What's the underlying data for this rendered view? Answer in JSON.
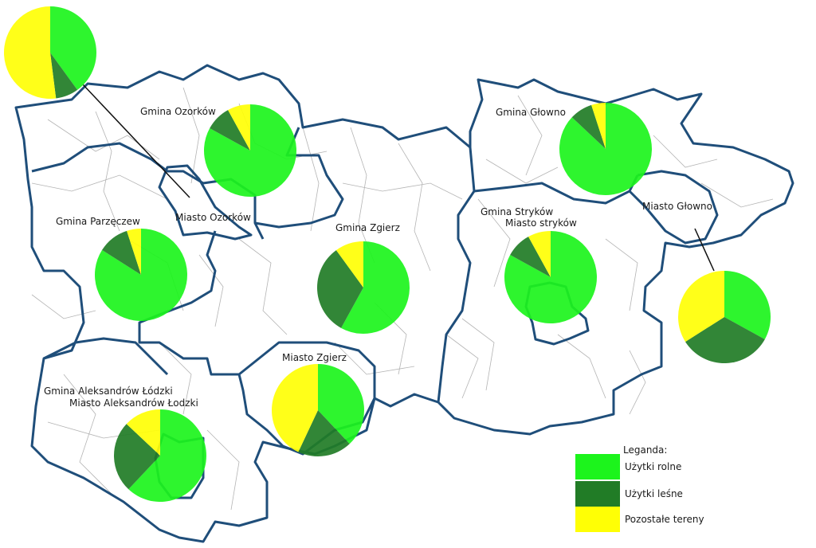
{
  "colors": {
    "agricultural": "#1cf41c",
    "forest": "#217c26",
    "other": "#ffff05",
    "boundary": "#1f4e7a",
    "parcel": "#b4b4b4"
  },
  "labels": {
    "gmina_ozorkow": "Gmina Ozorków",
    "gmina_glowno": "Gmina Głowno",
    "miasto_ozorkow": "Miasto Ozorków",
    "gmina_parzeczew": "Gmina Parzęczew",
    "gmina_zgierz": "Gmina Zgierz",
    "gmina_strykow": "Gmina Stryków",
    "miasto_strykow": "Miasto stryków",
    "miasto_glowno": "Miasto Głowno",
    "miasto_zgierz": "Miasto Zgierz",
    "gmina_aleksandrow": "Gmina Aleksandrów Łódzki",
    "miasto_aleksandrow": "Miasto Aleksandrów Łodzki"
  },
  "legend": {
    "title": "Leganda:",
    "items": [
      {
        "label": "Użytki rolne",
        "color": "#1cf41c"
      },
      {
        "label": "Użytki leśne",
        "color": "#217c26"
      },
      {
        "label": "Pozostałe tereny",
        "color": "#ffff05"
      }
    ]
  },
  "pies": [
    {
      "unit": "Miasto Ozorków",
      "shares": {
        "agricultural": 0.4,
        "forest": 0.08,
        "other": 0.52
      }
    },
    {
      "unit": "Gmina Ozorków",
      "shares": {
        "agricultural": 0.83,
        "forest": 0.09,
        "other": 0.08
      }
    },
    {
      "unit": "Gmina Głowno",
      "shares": {
        "agricultural": 0.87,
        "forest": 0.08,
        "other": 0.05
      }
    },
    {
      "unit": "Gmina Parzęczew",
      "shares": {
        "agricultural": 0.84,
        "forest": 0.11,
        "other": 0.05
      }
    },
    {
      "unit": "Gmina Zgierz",
      "shares": {
        "agricultural": 0.58,
        "forest": 0.32,
        "other": 0.1
      }
    },
    {
      "unit": "Gmina Stryków",
      "shares": {
        "agricultural": 0.83,
        "forest": 0.09,
        "other": 0.08
      }
    },
    {
      "unit": "Miasto Głowno",
      "shares": {
        "agricultural": 0.33,
        "forest": 0.33,
        "other": 0.34
      }
    },
    {
      "unit": "Miasto Zgierz",
      "shares": {
        "agricultural": 0.38,
        "forest": 0.19,
        "other": 0.43
      }
    },
    {
      "unit": "Gmina Aleksandrów Łódzki",
      "shares": {
        "agricultural": 0.62,
        "forest": 0.25,
        "other": 0.13
      }
    }
  ]
}
